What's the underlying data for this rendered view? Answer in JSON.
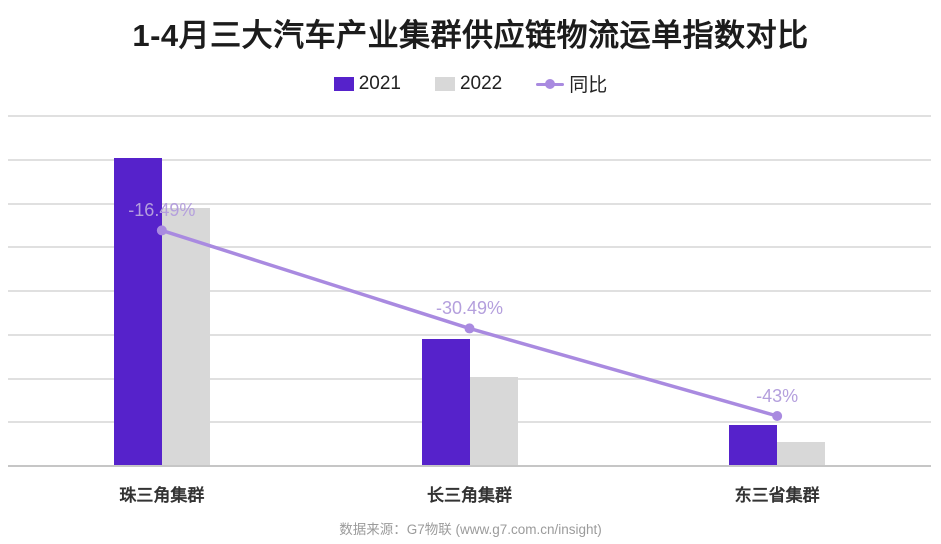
{
  "source": {
    "text": "数据来源：G7物联 (www.g7.com.cn/insight)"
  },
  "colors": {
    "bar_2021": "#5622cb",
    "bar_2022": "#d8d8d8",
    "yoy_line": "#a98ae0",
    "yoy_label": "#b49fdd",
    "gridline": "#e0e0e0",
    "axis": "#c6c6c6",
    "title": "#1c1c1c"
  },
  "chart_data": {
    "type": "bar",
    "combo": true,
    "title": "1-4月三大汽车产业集群供应链物流运单指数对比",
    "categories": [
      "珠三角集群",
      "长三角集群",
      "东三省集群"
    ],
    "series": [
      {
        "name": "2021",
        "type": "bar",
        "color": "#5622cb",
        "values": [
          140.5,
          57.7,
          18.2
        ]
      },
      {
        "name": "2022",
        "type": "bar",
        "color": "#d8d8d8",
        "values": [
          117.3,
          40.1,
          10.4
        ]
      },
      {
        "name": "同比",
        "type": "line",
        "axis": "secondary",
        "color": "#a98ae0",
        "values_pct": [
          -16.49,
          -30.49,
          -43
        ],
        "labels": [
          "-16.49%",
          "-30.49%",
          "-43%"
        ],
        "label_color": "#b49fdd"
      }
    ],
    "xlabel": "",
    "ylabel": "",
    "ylim": [
      0,
      160
    ],
    "y2lim": [
      -50,
      0
    ],
    "y_axis_labels_visible": false,
    "gridlines": true,
    "legend_position": "top-center",
    "legend_entries": [
      "2021",
      "2022",
      "同比"
    ]
  }
}
